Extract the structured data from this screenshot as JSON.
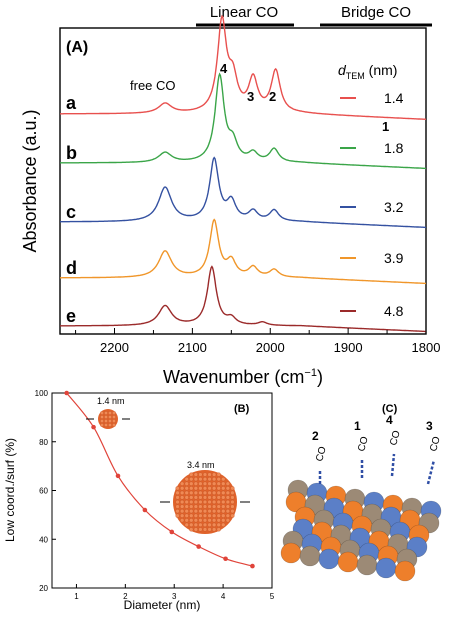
{
  "figure": {
    "top_labels": {
      "linear": "Linear CO",
      "bridge": "Bridge CO"
    },
    "panel_a": {
      "label": "(A)",
      "free_co": "free CO",
      "peak_4": "4",
      "peak_3": "3",
      "peak_2": "2",
      "peak_1": "1",
      "dtem_label": "d",
      "dtem_sub": "TEM",
      "dtem_unit": " (nm)"
    },
    "panel_b": {
      "label": "(B)",
      "inset_small": "1.4 nm",
      "inset_large": "3.4 nm"
    },
    "panel_c": {
      "label": "(C)",
      "site_labels": [
        "2",
        "1",
        "4",
        "3"
      ],
      "molecule": "CO"
    }
  },
  "colors": {
    "a": "#e8504e",
    "b": "#3aa548",
    "c": "#3451a1",
    "d": "#f0962a",
    "e": "#9b2a2a",
    "particle": "#e0622a",
    "atom_blue": "#5b7fc7",
    "atom_orange": "#ee7f2b",
    "atom_tan": "#9c8a76",
    "bond": "#2f4ea5"
  },
  "chart_data": [
    {
      "type": "line",
      "xlabel": "Wavenumber (cm",
      "xlabel_sup": "−1",
      "xlabel_close": ")",
      "ylabel": "Absorbance (a.u.)",
      "xlim": [
        2270,
        1800
      ],
      "x_ticks": [
        "2200",
        "2100",
        "2000",
        "1900",
        "1800"
      ],
      "x_tick_values": [
        2200,
        2100,
        2000,
        1900,
        1800
      ],
      "series": [
        {
          "name": "a",
          "legend_value": "1.4",
          "color": "#e8504e",
          "peaks": [
            [
              2135,
              0.09
            ],
            [
              2062,
              0.82
            ],
            [
              2048,
              0.28
            ],
            [
              2022,
              0.3
            ],
            [
              1993,
              0.38
            ]
          ]
        },
        {
          "name": "b",
          "legend_value": "1.8",
          "color": "#3aa548",
          "peaks": [
            [
              2135,
              0.09
            ],
            [
              2065,
              0.78
            ],
            [
              2048,
              0.16
            ],
            [
              2022,
              0.08
            ],
            [
              1995,
              0.12
            ]
          ]
        },
        {
          "name": "c",
          "legend_value": "3.2",
          "color": "#3451a1",
          "peaks": [
            [
              2135,
              0.31
            ],
            [
              2072,
              0.56
            ],
            [
              2050,
              0.17
            ],
            [
              2022,
              0.09
            ],
            [
              1995,
              0.1
            ]
          ]
        },
        {
          "name": "d",
          "legend_value": "3.9",
          "color": "#f0962a",
          "peaks": [
            [
              2135,
              0.24
            ],
            [
              2072,
              0.51
            ],
            [
              2050,
              0.14
            ],
            [
              2022,
              0.09
            ],
            [
              1995,
              0.07
            ]
          ]
        },
        {
          "name": "e",
          "legend_value": "4.8",
          "color": "#9b2a2a",
          "peaks": [
            [
              2135,
              0.18
            ],
            [
              2075,
              0.53
            ],
            [
              2050,
              0.06
            ],
            [
              2010,
              0.03
            ]
          ]
        }
      ]
    },
    {
      "type": "line",
      "xlabel": "Diameter (nm)",
      "ylabel": "Low coord./surf (%)",
      "xlim": [
        0.5,
        5
      ],
      "ylim": [
        20,
        100
      ],
      "x_ticks": [
        "1",
        "2",
        "3",
        "4",
        "5"
      ],
      "y_ticks": [
        "20",
        "40",
        "60",
        "80",
        "100"
      ],
      "x": [
        0.8,
        1.35,
        1.85,
        2.4,
        2.95,
        3.5,
        4.05,
        4.6
      ],
      "y": [
        100,
        86,
        66,
        52,
        43,
        37,
        32,
        29
      ]
    }
  ]
}
